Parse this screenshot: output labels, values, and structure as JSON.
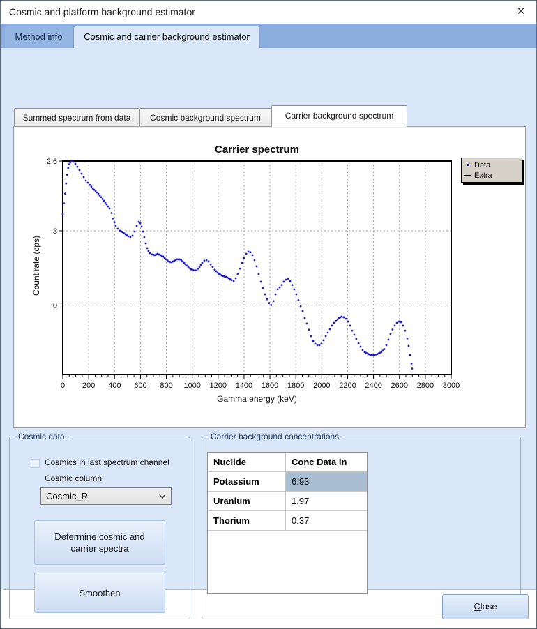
{
  "window": {
    "title": "Cosmic and platform background estimator"
  },
  "icons": {
    "close": "✕"
  },
  "tabs": {
    "outer": [
      {
        "label": "Method info",
        "active": false
      },
      {
        "label": "Cosmic and carrier background estimator",
        "active": true
      }
    ],
    "inner": [
      {
        "label": "Summed spectrum from data",
        "active": false
      },
      {
        "label": "Cosmic background spectrum",
        "active": false
      },
      {
        "label": "Carrier background spectrum",
        "active": true
      }
    ]
  },
  "chart_data": {
    "type": "scatter",
    "title": "Carrier spectrum",
    "x_axis": {
      "title": "Gamma energy (keV)",
      "min": 0,
      "max": 3000,
      "major_step": 200,
      "minor_step": 50
    },
    "y_axis": {
      "title": "Count rate (cps)",
      "scale": "log",
      "max": 2.6,
      "min": 0.0035,
      "ticks": [
        {
          "v": 2.6,
          "label": "2.6"
        },
        {
          "v": 0.3,
          "label": ".3"
        },
        {
          "v": 0.03,
          "label": ".0"
        }
      ]
    },
    "grid": {
      "style": "dashed",
      "color": "#9b9b9b"
    },
    "legend_position": "top-right",
    "series": [
      {
        "name": "Data",
        "marker": "dot",
        "color": "#1b1bd0",
        "points": [
          [
            0,
            0.5
          ],
          [
            10,
            0.7
          ],
          [
            18,
            0.95
          ],
          [
            26,
            1.3
          ],
          [
            34,
            1.7
          ],
          [
            42,
            2.1
          ],
          [
            50,
            2.35
          ],
          [
            58,
            2.5
          ],
          [
            66,
            2.6
          ],
          [
            81,
            2.55
          ],
          [
            97,
            2.39
          ],
          [
            113,
            2.18
          ],
          [
            129,
            1.97
          ],
          [
            145,
            1.76
          ],
          [
            162,
            1.58
          ],
          [
            178,
            1.42
          ],
          [
            194,
            1.33
          ],
          [
            210,
            1.24
          ],
          [
            232,
            1.11
          ],
          [
            253,
            1.03
          ],
          [
            275,
            0.94
          ],
          [
            296,
            0.85
          ],
          [
            318,
            0.76
          ],
          [
            339,
            0.68
          ],
          [
            361,
            0.6
          ],
          [
            377,
            0.52
          ],
          [
            388,
            0.44
          ],
          [
            399,
            0.39
          ],
          [
            409,
            0.35
          ],
          [
            425,
            0.32
          ],
          [
            442,
            0.3
          ],
          [
            463,
            0.287
          ],
          [
            485,
            0.269
          ],
          [
            506,
            0.252
          ],
          [
            522,
            0.247
          ],
          [
            539,
            0.258
          ],
          [
            555,
            0.293
          ],
          [
            571,
            0.349
          ],
          [
            587,
            0.397
          ],
          [
            598,
            0.38
          ],
          [
            609,
            0.341
          ],
          [
            619,
            0.293
          ],
          [
            630,
            0.247
          ],
          [
            641,
            0.203
          ],
          [
            652,
            0.175
          ],
          [
            662,
            0.16
          ],
          [
            673,
            0.15
          ],
          [
            689,
            0.144
          ],
          [
            711,
            0.141
          ],
          [
            732,
            0.147
          ],
          [
            754,
            0.141
          ],
          [
            776,
            0.135
          ],
          [
            797,
            0.124
          ],
          [
            819,
            0.116
          ],
          [
            840,
            0.113
          ],
          [
            862,
            0.119
          ],
          [
            883,
            0.124
          ],
          [
            905,
            0.124
          ],
          [
            926,
            0.116
          ],
          [
            948,
            0.106
          ],
          [
            969,
            0.098
          ],
          [
            991,
            0.091
          ],
          [
            1013,
            0.088
          ],
          [
            1034,
            0.088
          ],
          [
            1056,
            0.098
          ],
          [
            1077,
            0.111
          ],
          [
            1093,
            0.119
          ],
          [
            1110,
            0.121
          ],
          [
            1126,
            0.116
          ],
          [
            1142,
            0.106
          ],
          [
            1158,
            0.098
          ],
          [
            1174,
            0.09
          ],
          [
            1196,
            0.082
          ],
          [
            1217,
            0.077
          ],
          [
            1239,
            0.074
          ],
          [
            1260,
            0.072
          ],
          [
            1282,
            0.069
          ],
          [
            1303,
            0.065
          ],
          [
            1320,
            0.063
          ],
          [
            1336,
            0.069
          ],
          [
            1352,
            0.079
          ],
          [
            1368,
            0.093
          ],
          [
            1384,
            0.111
          ],
          [
            1400,
            0.129
          ],
          [
            1417,
            0.147
          ],
          [
            1433,
            0.157
          ],
          [
            1449,
            0.154
          ],
          [
            1465,
            0.141
          ],
          [
            1481,
            0.121
          ],
          [
            1497,
            0.1
          ],
          [
            1513,
            0.079
          ],
          [
            1530,
            0.062
          ],
          [
            1546,
            0.051
          ],
          [
            1562,
            0.042
          ],
          [
            1578,
            0.036
          ],
          [
            1594,
            0.032
          ],
          [
            1610,
            0.03
          ],
          [
            1627,
            0.034
          ],
          [
            1643,
            0.042
          ],
          [
            1659,
            0.049
          ],
          [
            1675,
            0.052
          ],
          [
            1691,
            0.056
          ],
          [
            1707,
            0.062
          ],
          [
            1723,
            0.066
          ],
          [
            1740,
            0.068
          ],
          [
            1756,
            0.063
          ],
          [
            1772,
            0.056
          ],
          [
            1788,
            0.049
          ],
          [
            1804,
            0.042
          ],
          [
            1820,
            0.035
          ],
          [
            1837,
            0.029
          ],
          [
            1853,
            0.025
          ],
          [
            1869,
            0.02
          ],
          [
            1885,
            0.017
          ],
          [
            1901,
            0.014
          ],
          [
            1917,
            0.0115
          ],
          [
            1934,
            0.0099
          ],
          [
            1950,
            0.0091
          ],
          [
            1966,
            0.0087
          ],
          [
            1982,
            0.0087
          ],
          [
            1998,
            0.0091
          ],
          [
            2014,
            0.0101
          ],
          [
            2031,
            0.0115
          ],
          [
            2047,
            0.0128
          ],
          [
            2063,
            0.0143
          ],
          [
            2079,
            0.0159
          ],
          [
            2095,
            0.0173
          ],
          [
            2111,
            0.0184
          ],
          [
            2133,
            0.0202
          ],
          [
            2154,
            0.0211
          ],
          [
            2170,
            0.0206
          ],
          [
            2187,
            0.0197
          ],
          [
            2203,
            0.0181
          ],
          [
            2219,
            0.0159
          ],
          [
            2235,
            0.0136
          ],
          [
            2251,
            0.012
          ],
          [
            2267,
            0.0105
          ],
          [
            2284,
            0.0093
          ],
          [
            2300,
            0.0083
          ],
          [
            2316,
            0.0075
          ],
          [
            2332,
            0.007
          ],
          [
            2354,
            0.0067
          ],
          [
            2375,
            0.0064
          ],
          [
            2397,
            0.0064
          ],
          [
            2418,
            0.0065
          ],
          [
            2440,
            0.0067
          ],
          [
            2461,
            0.007
          ],
          [
            2483,
            0.0077
          ],
          [
            2499,
            0.0087
          ],
          [
            2515,
            0.0103
          ],
          [
            2531,
            0.0123
          ],
          [
            2547,
            0.0141
          ],
          [
            2564,
            0.0159
          ],
          [
            2580,
            0.0173
          ],
          [
            2596,
            0.0181
          ],
          [
            2612,
            0.0177
          ],
          [
            2628,
            0.0159
          ],
          [
            2644,
            0.0136
          ],
          [
            2661,
            0.0107
          ],
          [
            2671,
            0.0085
          ],
          [
            2682,
            0.0064
          ],
          [
            2693,
            0.0049
          ],
          [
            2698,
            0.0042
          ]
        ]
      },
      {
        "name": "Extra",
        "marker": "line",
        "color": "#000000",
        "points": []
      }
    ]
  },
  "cosmic": {
    "title": "Cosmic data",
    "checkbox_label": "Cosmics in last spectrum channel",
    "checkbox_checked": false,
    "column_label": "Cosmic column",
    "column_value": "Cosmic_R",
    "determine_label": "Determine cosmic and carrier spectra",
    "smoothen_label": "Smoothen"
  },
  "carrier": {
    "title": "Carrier background concentrations",
    "table": {
      "headers": [
        "Nuclide",
        "Conc Data in"
      ],
      "rows": [
        [
          "Potassium",
          "6.93"
        ],
        [
          "Uranium",
          "1.97"
        ],
        [
          "Thorium",
          "0.37"
        ]
      ],
      "selected": {
        "row": 0,
        "col": 1
      }
    }
  },
  "footer": {
    "close_label": "Close"
  },
  "colors": {
    "tab_strip": "#8caede",
    "page_bg": "#d9e7f8",
    "panel_bg": "#ffffff",
    "data_series": "#1b1bd0",
    "legend_bg": "#d6d2c9",
    "selected_cell": "#a8bdd1",
    "button_top": "#eaf2fc",
    "button_bottom": "#cdddf3"
  }
}
